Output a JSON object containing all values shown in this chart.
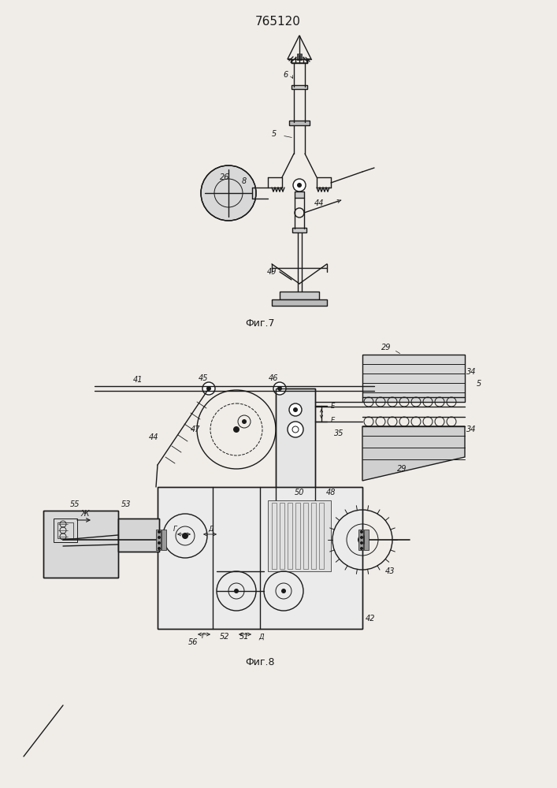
{
  "title": "765120",
  "fig7_label": "Фиг.7",
  "fig8_label": "Фиг.8",
  "bg_color": "#f0ede8",
  "line_color": "#1a1a1a",
  "lw": 1.0
}
